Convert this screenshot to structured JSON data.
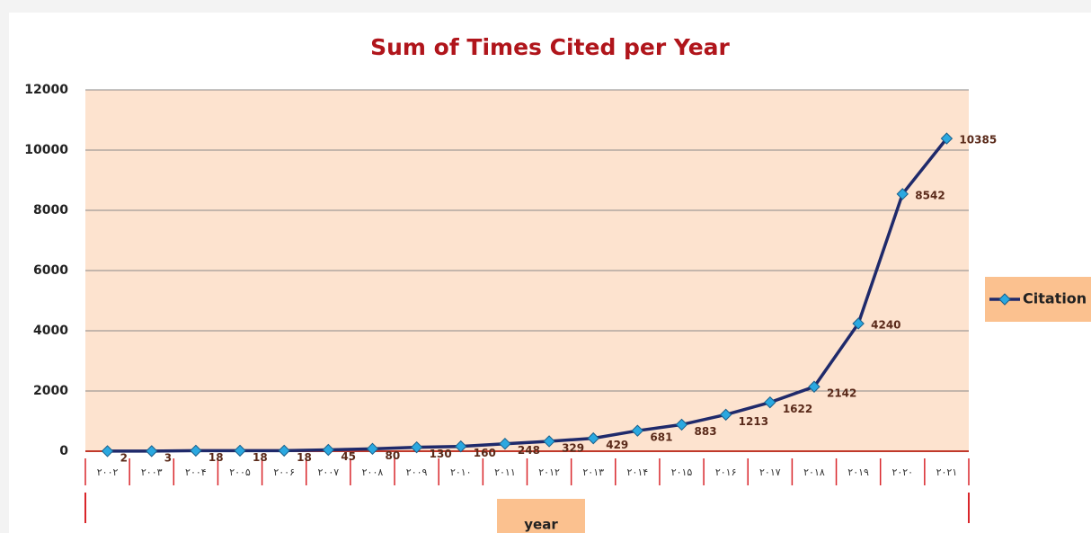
{
  "chart_data": {
    "type": "line",
    "title": "Sum of Times Cited per Year",
    "x_label": "year",
    "categories": [
      "۲۰۰۲",
      "۲۰۰۳",
      "۲۰۰۴",
      "۲۰۰۵",
      "۲۰۰۶",
      "۲۰۰۷",
      "۲۰۰۸",
      "۲۰۰۹",
      "۲۰۱۰",
      "۲۰۱۱",
      "۲۰۱۲",
      "۲۰۱۳",
      "۲۰۱۴",
      "۲۰۱۵",
      "۲۰۱۶",
      "۲۰۱۷",
      "۲۰۱۸",
      "۲۰۱۹",
      "۲۰۲۰",
      "۲۰۲۱"
    ],
    "series": [
      {
        "name": "Citation",
        "color": "#1f2a6b",
        "marker_color": "#2aa8e0",
        "values": [
          2,
          3,
          18,
          18,
          18,
          45,
          80,
          130,
          160,
          248,
          329,
          429,
          681,
          883,
          1213,
          1622,
          2142,
          4240,
          8542,
          10385
        ]
      }
    ],
    "ylim": [
      0,
      12000
    ],
    "yticks": [
      0,
      2000,
      4000,
      6000,
      8000,
      10000,
      12000
    ],
    "grid": true,
    "legend": "right"
  }
}
